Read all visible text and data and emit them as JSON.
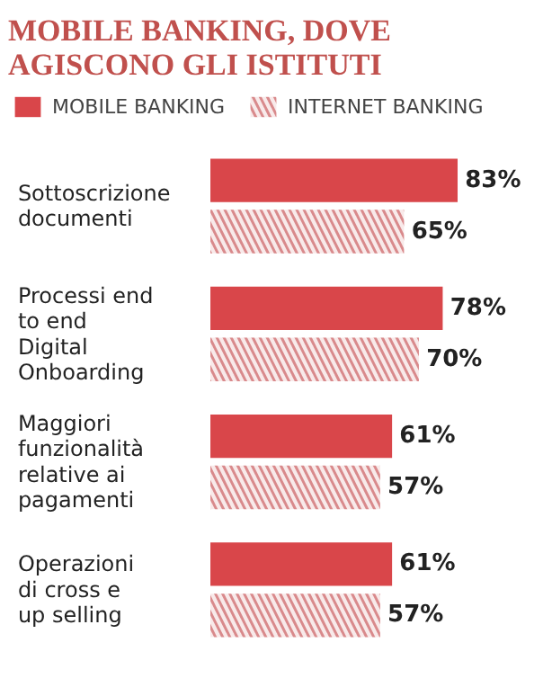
{
  "chart_data": {
    "type": "bar",
    "orientation": "horizontal",
    "title": "MOBILE BANKING, DOVE AGISCONO GLI ISTITUTI",
    "categories": [
      "Sottoscrizione documenti",
      "Processi end to end Digital Onboarding",
      "Maggiori funzionalità relative ai pagamenti",
      "Operazioni di cross e up selling"
    ],
    "series": [
      {
        "name": "MOBILE BANKING",
        "color": "#d9464a",
        "values": [
          83,
          78,
          61,
          61
        ],
        "value_labels": [
          "83%",
          "78%",
          "61%",
          "61%"
        ]
      },
      {
        "name": "INTERNET BANKING",
        "color": "#d98a8c",
        "values": [
          65,
          70,
          57,
          57
        ],
        "value_labels": [
          "65%",
          "70%",
          "57%",
          "57%"
        ]
      }
    ],
    "legend": "top",
    "grid": false
  }
}
